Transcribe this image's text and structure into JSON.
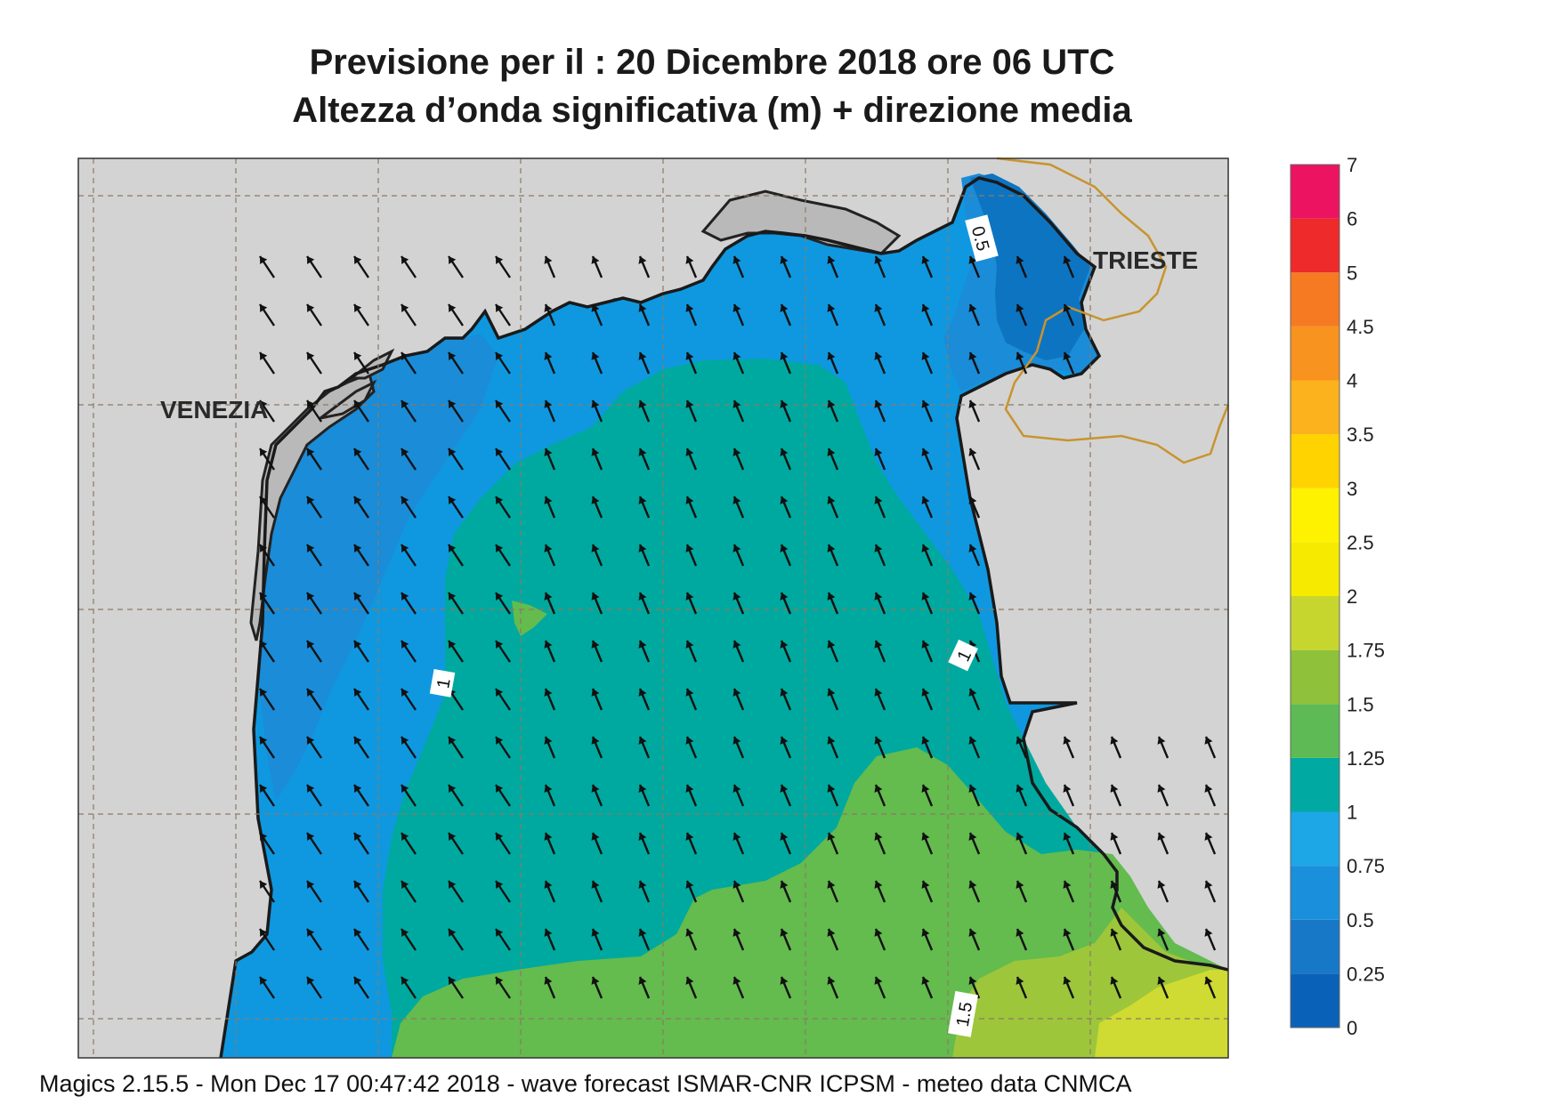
{
  "title_line1": "Previsione per il  :  20 Dicembre  2018    ore 06 UTC",
  "title_line2": "Altezza d’onda significativa (m) + direzione media",
  "cities": {
    "venezia": "VENEZIA",
    "trieste": "TRIESTE"
  },
  "contour_labels": {
    "c05": "0.5",
    "c1a": "1",
    "c1b": "1",
    "c15": "1.5"
  },
  "colorbar": {
    "ticks": [
      "0",
      "0.25",
      "0.5",
      "0.75",
      "1",
      "1.25",
      "1.5",
      "1.75",
      "2",
      "2.5",
      "3",
      "3.5",
      "4",
      "4.5",
      "5",
      "6",
      "7"
    ],
    "colors": [
      "#0a62b8",
      "#1878c8",
      "#1a8fdb",
      "#1ea7e6",
      "#00aaa3",
      "#5dba54",
      "#8fc23a",
      "#c7d62e",
      "#f5ea00",
      "#fff200",
      "#ffd300",
      "#fbb21c",
      "#f7931e",
      "#f57a21",
      "#ee2a2a",
      "#ec1461",
      "#ffffff"
    ]
  },
  "footer": "Magics 2.15.5 - Mon Dec 17 00:47:42 2018 - wave forecast  ISMAR-CNR  ICPSM - meteo data   CNMCA",
  "wave_direction": "towards north-north-west (arrows)"
}
